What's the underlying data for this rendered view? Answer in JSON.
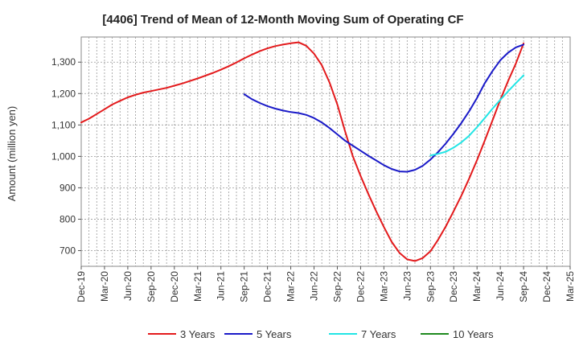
{
  "chart_data": {
    "type": "line",
    "title": "[4406]  Trend of Mean of 12-Month Moving Sum of Operating CF",
    "xlabel": "",
    "ylabel": "Amount (million yen)",
    "ylim": [
      650,
      1380
    ],
    "yticks": [
      700,
      800,
      900,
      1000,
      1100,
      1200,
      1300
    ],
    "ytick_labels": [
      "700",
      "800",
      "900",
      "1,000",
      "1,100",
      "1,200",
      "1,300"
    ],
    "xlim": [
      0,
      63
    ],
    "xtick_positions": [
      0,
      3,
      6,
      9,
      12,
      15,
      18,
      21,
      24,
      27,
      30,
      33,
      36,
      39,
      42,
      45,
      48,
      51,
      54,
      57,
      60,
      63
    ],
    "xtick_labels": [
      "Dec-19",
      "Mar-20",
      "Jun-20",
      "Sep-20",
      "Dec-20",
      "Mar-21",
      "Jun-21",
      "Sep-21",
      "Dec-21",
      "Mar-22",
      "Jun-22",
      "Sep-22",
      "Dec-22",
      "Mar-23",
      "Jun-23",
      "Sep-23",
      "Dec-23",
      "Mar-24",
      "Jun-24",
      "Sep-24",
      "Dec-24",
      "Mar-25"
    ],
    "grid": true,
    "legend_position": "bottom",
    "series": [
      {
        "name": "3 Years",
        "color": "#e31a1c",
        "x": [
          0,
          1,
          2,
          3,
          4,
          5,
          6,
          7,
          8,
          9,
          10,
          11,
          12,
          13,
          14,
          15,
          16,
          17,
          18,
          19,
          20,
          21,
          22,
          23,
          24,
          25,
          26,
          27,
          28,
          29,
          30,
          31,
          32,
          33,
          34,
          35,
          36,
          37,
          38,
          39,
          40,
          41,
          42,
          43,
          44,
          45,
          46,
          47,
          48,
          49,
          50,
          51,
          52,
          53,
          54,
          55,
          56,
          57
        ],
        "values": [
          1108,
          1120,
          1135,
          1150,
          1165,
          1177,
          1188,
          1196,
          1203,
          1208,
          1213,
          1218,
          1225,
          1232,
          1240,
          1248,
          1257,
          1266,
          1276,
          1287,
          1299,
          1312,
          1324,
          1335,
          1344,
          1351,
          1356,
          1360,
          1363,
          1352,
          1327,
          1290,
          1235,
          1165,
          1080,
          1000,
          938,
          880,
          826,
          775,
          728,
          693,
          672,
          667,
          676,
          698,
          735,
          778,
          826,
          876,
          930,
          988,
          1050,
          1115,
          1180,
          1240,
          1295,
          1360
        ]
      },
      {
        "name": "5 Years",
        "color": "#1a1ac8",
        "x": [
          21,
          22,
          23,
          24,
          25,
          26,
          27,
          28,
          29,
          30,
          31,
          32,
          33,
          34,
          35,
          36,
          37,
          38,
          39,
          40,
          41,
          42,
          43,
          44,
          45,
          46,
          47,
          48,
          49,
          50,
          51,
          52,
          53,
          54,
          55,
          56,
          57
        ],
        "values": [
          1198,
          1182,
          1170,
          1160,
          1152,
          1146,
          1141,
          1138,
          1132,
          1122,
          1108,
          1090,
          1070,
          1050,
          1034,
          1018,
          1002,
          987,
          972,
          960,
          952,
          951,
          957,
          970,
          990,
          1014,
          1042,
          1073,
          1107,
          1144,
          1186,
          1233,
          1272,
          1306,
          1330,
          1347,
          1356
        ]
      },
      {
        "name": "7 Years",
        "color": "#22e5e5",
        "x": [
          45,
          46,
          47,
          48,
          49,
          50,
          51,
          52,
          53,
          54,
          55,
          56,
          57
        ],
        "values": [
          1003,
          1008,
          1015,
          1028,
          1045,
          1066,
          1093,
          1122,
          1152,
          1180,
          1207,
          1233,
          1258
        ]
      },
      {
        "name": "10 Years",
        "color": "#1f8a1f",
        "x": [],
        "values": []
      }
    ]
  }
}
